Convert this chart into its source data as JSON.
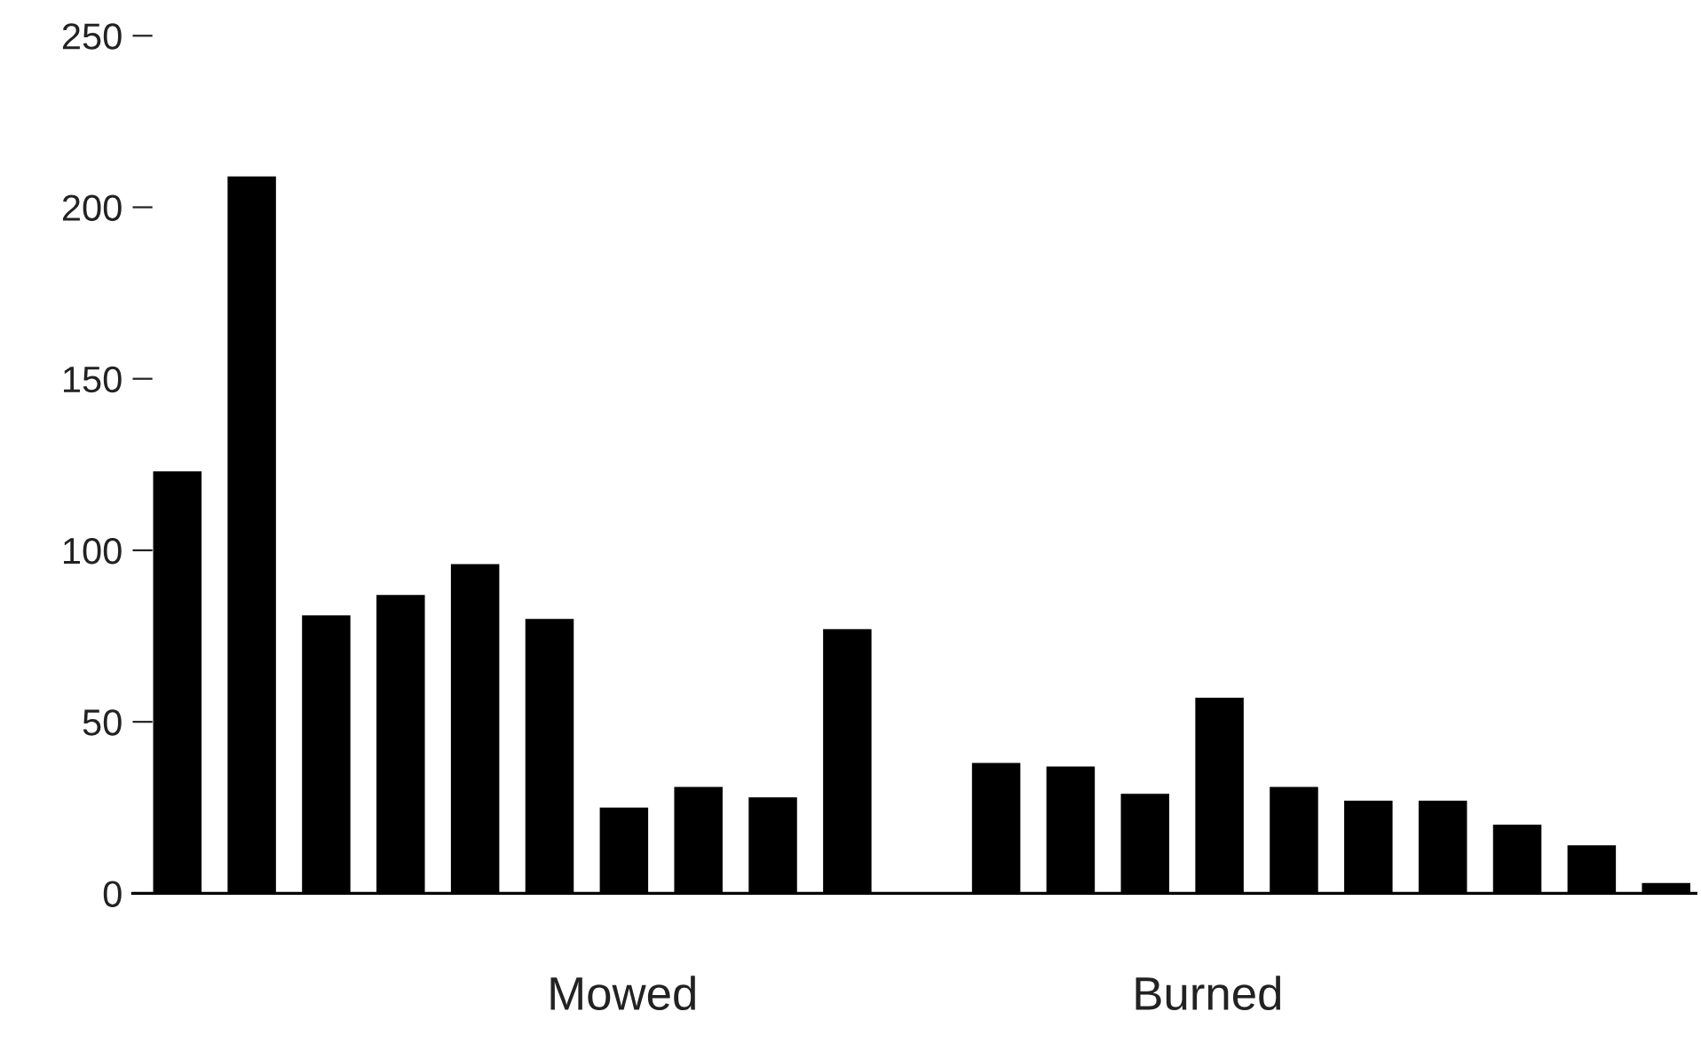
{
  "chart_data": {
    "type": "bar",
    "categories": [
      null,
      null,
      null,
      null,
      null,
      null,
      null,
      null,
      null,
      null,
      null,
      null,
      null,
      null,
      null,
      null,
      null,
      null,
      null,
      null,
      null
    ],
    "values": [
      123,
      209,
      81,
      87,
      96,
      80,
      25,
      31,
      28,
      77,
      null,
      38,
      37,
      29,
      57,
      31,
      27,
      27,
      20,
      14,
      3
    ],
    "color": "#000000",
    "ylim": [
      0,
      250
    ],
    "yticks": [
      0,
      50,
      100,
      150,
      200,
      250
    ],
    "annotations": [
      "Mowed",
      "Burned"
    ],
    "grid": false,
    "legend": false
  }
}
